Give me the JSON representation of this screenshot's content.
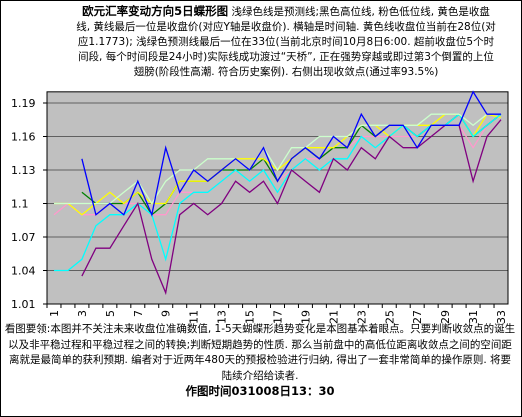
{
  "chart_data": {
    "type": "line",
    "title": "欧元汇率变动方向5日蝶形图",
    "subtitle": "浅绿色线是预测线;黑色高位线, 粉色低位线, 黄色是收盘线, 黄线最后一位是收盘价(对应Y轴是收盘价). 横轴是时间轴. 黄色线收盘位当前在28位(对应1.1773); 浅绿色预测线最后一位在33位(当前北京时间10月8日6:00. 超前收盘位5个时间段, 每个时间段是24小时)实际线成功渡过“天桥”, 正在强势穿越或即过第3个倒置的上位翅膀(阶段性高潮. 符合历史案例). 右侧出现收敛点(通过率93.5%)",
    "note": "看图要领:本图并不关注未来收盘位准确数值, 1-5天蝴蝶形趋势变化是本图基本着眼点。只要判断收敛点的诞生以及非平稳过程和平稳过程之间的转换;判断短期趋势的性质. 那么当前盘中的高低位距离收敛点之间的空间距离就是最简单的获利预期. 编者对于近两年480天的预报检验进行归纳, 得出了一套非常简单的操作原则. 将要陆续介绍给读者.",
    "footer": "作图时间031008日13：30",
    "categories": [
      "1",
      null,
      "3",
      null,
      "5",
      null,
      "7",
      null,
      "9",
      null,
      "11",
      null,
      "13",
      null,
      "15",
      null,
      "17",
      null,
      "19",
      null,
      "21",
      null,
      "23",
      null,
      "25",
      null,
      "27",
      null,
      "29",
      null,
      "31",
      null,
      "33"
    ],
    "ylim": [
      1.01,
      1.2
    ],
    "yticks": [
      1.01,
      1.04,
      1.07,
      1.1,
      1.13,
      1.16,
      1.19
    ],
    "series": [
      {
        "color": "#ff99cc",
        "values": [
          1.09,
          1.1,
          1.09,
          1.09,
          1.1,
          1.1,
          1.1,
          1.09,
          1.09,
          1.11,
          1.11,
          1.11,
          1.12,
          1.13,
          1.13,
          1.14,
          1.12,
          1.13,
          1.14,
          1.14,
          1.15,
          1.15,
          1.16,
          1.16,
          1.16,
          1.16,
          1.16,
          1.17,
          1.17,
          1.17,
          1.15,
          1.17,
          1.18
        ]
      },
      {
        "color": "#008000",
        "values": [
          null,
          null,
          1.11,
          1.1,
          1.1,
          1.1,
          1.11,
          1.09,
          1.1,
          1.12,
          1.12,
          1.12,
          1.13,
          1.13,
          1.13,
          1.14,
          1.12,
          1.14,
          1.15,
          1.14,
          1.15,
          1.15,
          1.17,
          1.16,
          1.17,
          1.17,
          1.16,
          1.17,
          1.17,
          1.18,
          1.16,
          1.17,
          1.18
        ]
      },
      {
        "color": "#ffff00",
        "values": [
          1.1,
          1.1,
          1.09,
          1.1,
          1.11,
          1.1,
          1.11,
          1.1,
          1.1,
          1.12,
          1.12,
          1.12,
          1.13,
          1.14,
          1.14,
          1.14,
          1.13,
          1.14,
          1.15,
          1.15,
          1.15,
          1.16,
          1.17,
          1.17,
          1.16,
          1.17,
          1.17,
          1.17,
          1.18,
          1.18,
          1.16,
          1.18,
          1.177
        ]
      },
      {
        "color": "#00ffff",
        "values": [
          1.04,
          1.04,
          1.05,
          1.08,
          1.09,
          1.09,
          1.1,
          1.09,
          1.05,
          1.1,
          1.11,
          1.11,
          1.12,
          1.13,
          1.12,
          1.13,
          1.11,
          1.13,
          1.14,
          1.13,
          1.14,
          1.14,
          1.16,
          1.15,
          1.16,
          1.17,
          1.16,
          1.17,
          1.17,
          1.18,
          1.16,
          1.17,
          1.18
        ]
      },
      {
        "color": "#ccffcc",
        "values": [
          1.1,
          1.1,
          1.1,
          1.1,
          1.1,
          1.11,
          1.12,
          1.1,
          1.12,
          1.13,
          1.13,
          1.14,
          1.14,
          1.14,
          1.13,
          1.15,
          1.13,
          1.15,
          1.15,
          1.16,
          1.16,
          1.16,
          1.17,
          1.17,
          1.17,
          1.17,
          1.17,
          1.18,
          1.18,
          1.18,
          1.17,
          1.18,
          1.18
        ]
      },
      {
        "color": "#800080",
        "values": [
          null,
          null,
          1.035,
          1.06,
          1.06,
          1.08,
          1.1,
          1.05,
          1.02,
          1.09,
          1.1,
          1.09,
          1.1,
          1.12,
          1.11,
          1.12,
          1.1,
          1.13,
          1.12,
          1.11,
          1.14,
          1.13,
          1.15,
          1.14,
          1.16,
          1.15,
          1.15,
          1.16,
          1.17,
          1.17,
          1.12,
          1.16,
          1.175
        ]
      },
      {
        "color": "#0000ff",
        "values": [
          null,
          null,
          1.14,
          1.09,
          1.1,
          1.09,
          1.12,
          1.09,
          1.15,
          1.11,
          1.13,
          1.12,
          1.13,
          1.14,
          1.13,
          1.15,
          1.12,
          1.14,
          1.15,
          1.14,
          1.16,
          1.15,
          1.18,
          1.16,
          1.17,
          1.17,
          1.15,
          1.17,
          1.17,
          1.17,
          1.2,
          1.18,
          1.18
        ]
      }
    ]
  }
}
